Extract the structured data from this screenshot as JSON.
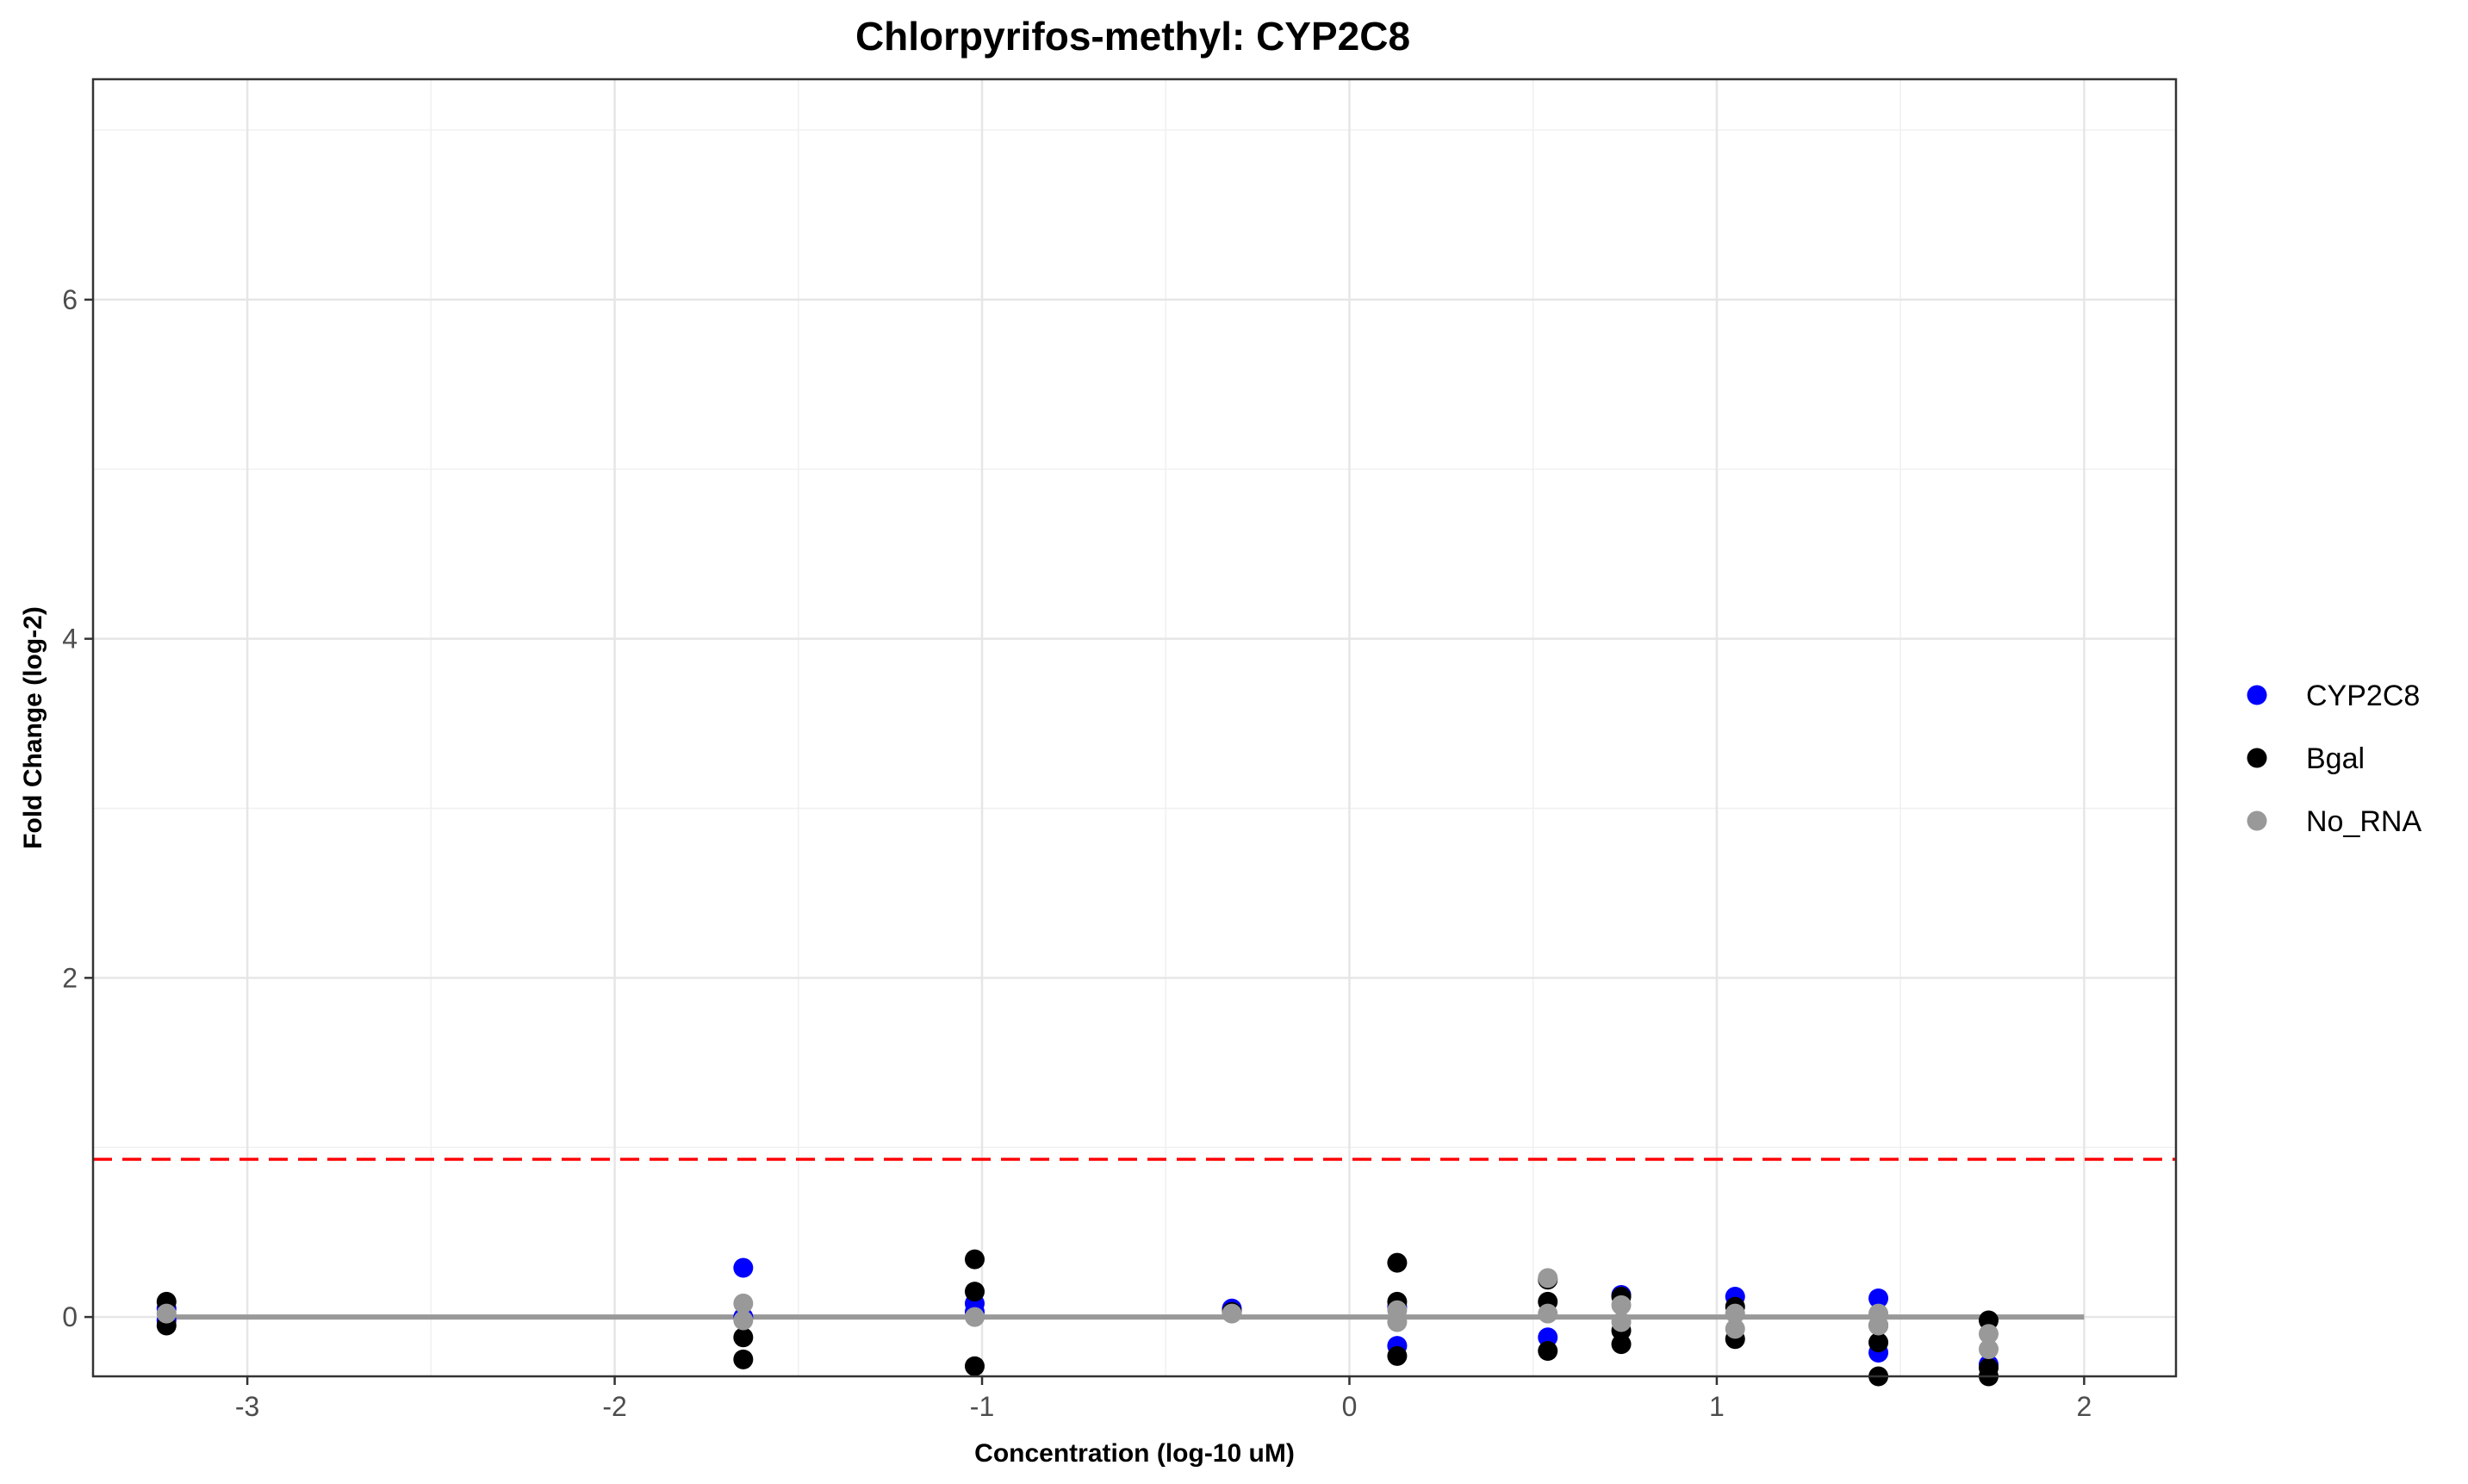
{
  "chart_data": {
    "type": "scatter",
    "title": "Chlorpyrifos-methyl: CYP2C8",
    "xlabel": "Concentration (log-10 uM)",
    "ylabel": "Fold Change (log-2)",
    "xlim": [
      -3.42,
      2.25
    ],
    "ylim": [
      -0.35,
      7.3
    ],
    "x_ticks": [
      -3,
      -2,
      -1,
      0,
      1,
      2
    ],
    "x_tick_labels": [
      "-3",
      "-2",
      "-1",
      "0",
      "1",
      "2"
    ],
    "y_ticks": [
      0,
      2,
      4,
      6
    ],
    "y_tick_labels": [
      "0",
      "2",
      "4",
      "6"
    ],
    "grid": true,
    "legend_position": "right",
    "threshold_line": {
      "y": 0.93,
      "style": "dashed",
      "color": "#ff0000"
    },
    "baseline": {
      "x_range": [
        -3.22,
        2.0
      ],
      "y": 0,
      "color": "#999999"
    },
    "series": [
      {
        "name": "CYP2C8",
        "color": "#0000ff",
        "points": [
          [
            -3.22,
            0.05
          ],
          [
            -3.22,
            -0.02
          ],
          [
            -1.65,
            0.29
          ],
          [
            -1.65,
            0.0
          ],
          [
            -1.02,
            0.08
          ],
          [
            -1.02,
            0.03
          ],
          [
            -0.32,
            0.05
          ],
          [
            0.13,
            -0.17
          ],
          [
            0.13,
            0.06
          ],
          [
            0.54,
            -0.12
          ],
          [
            0.74,
            0.13
          ],
          [
            1.05,
            0.12
          ],
          [
            1.44,
            -0.21
          ],
          [
            1.44,
            0.11
          ],
          [
            1.74,
            -0.28
          ]
        ]
      },
      {
        "name": "Bgal",
        "color": "#000000",
        "points": [
          [
            -3.22,
            0.09
          ],
          [
            -3.22,
            -0.05
          ],
          [
            -1.65,
            -0.12
          ],
          [
            -1.65,
            -0.25
          ],
          [
            -1.02,
            0.34
          ],
          [
            -1.02,
            0.15
          ],
          [
            -1.02,
            -0.29
          ],
          [
            -0.32,
            0.03
          ],
          [
            0.13,
            0.32
          ],
          [
            0.13,
            0.09
          ],
          [
            0.13,
            -0.23
          ],
          [
            0.54,
            0.22
          ],
          [
            0.54,
            0.09
          ],
          [
            0.54,
            -0.2
          ],
          [
            0.74,
            0.12
          ],
          [
            0.74,
            -0.08
          ],
          [
            0.74,
            -0.16
          ],
          [
            1.05,
            0.06
          ],
          [
            1.05,
            -0.13
          ],
          [
            1.44,
            -0.05
          ],
          [
            1.44,
            -0.15
          ],
          [
            1.44,
            -0.38
          ],
          [
            1.74,
            -0.02
          ],
          [
            1.74,
            -0.3
          ],
          [
            1.74,
            -0.35
          ]
        ]
      },
      {
        "name": "No_RNA",
        "color": "#999999",
        "points": [
          [
            -3.22,
            0.02
          ],
          [
            -1.65,
            0.08
          ],
          [
            -1.65,
            -0.02
          ],
          [
            -1.02,
            0.0
          ],
          [
            -0.32,
            0.02
          ],
          [
            0.13,
            0.04
          ],
          [
            0.13,
            -0.03
          ],
          [
            0.54,
            0.23
          ],
          [
            0.54,
            0.02
          ],
          [
            0.74,
            0.07
          ],
          [
            0.74,
            -0.03
          ],
          [
            1.05,
            0.02
          ],
          [
            1.05,
            -0.07
          ],
          [
            1.44,
            0.02
          ],
          [
            1.44,
            -0.05
          ],
          [
            1.74,
            -0.1
          ],
          [
            1.74,
            -0.19
          ]
        ]
      }
    ]
  }
}
